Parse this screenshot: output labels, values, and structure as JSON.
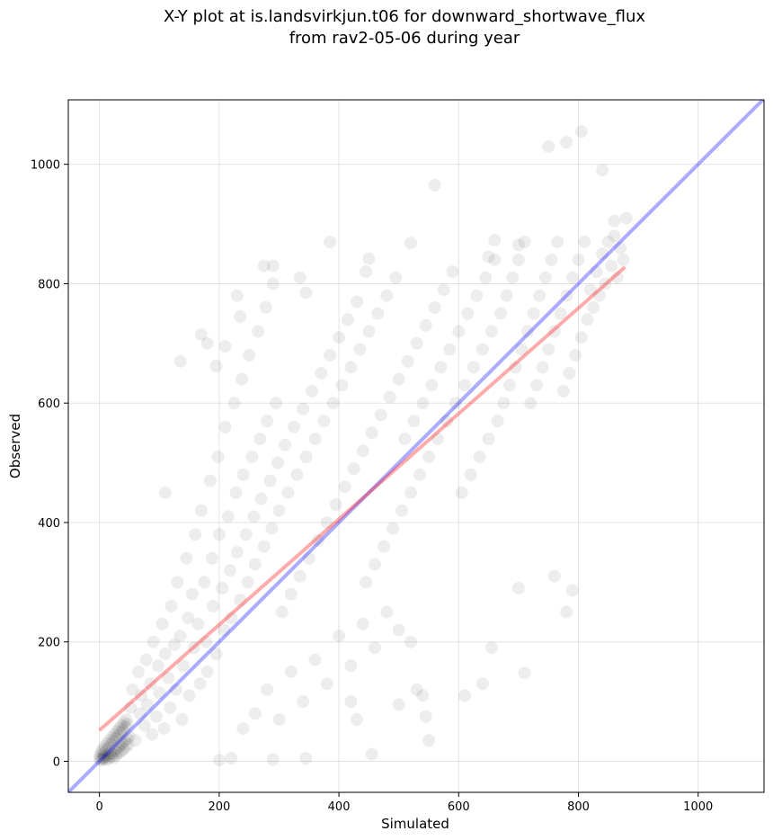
{
  "chart_data": {
    "type": "scatter",
    "title_lines": [
      "X-Y plot at is.landsvirkjun.t06 for downward_shortwave_flux",
      "from rav2-05-06 during year"
    ],
    "xlabel": "Simulated",
    "ylabel": "Observed",
    "xlim": [
      -52,
      1110
    ],
    "ylim": [
      -52,
      1108
    ],
    "xticks": [
      0,
      200,
      400,
      600,
      800,
      1000
    ],
    "yticks": [
      0,
      200,
      400,
      600,
      800,
      1000
    ],
    "grid": true,
    "point_color": "#000000",
    "point_alpha": 0.07,
    "one_to_one_line": {
      "color": "#0000ff",
      "from": [
        -52,
        -52
      ],
      "to": [
        1110,
        1110
      ]
    },
    "regression_line": {
      "color": "#ff0000",
      "from": [
        0,
        52
      ],
      "to": [
        878,
        828
      ]
    },
    "series": [
      {
        "points": [
          [
            0,
            5
          ],
          [
            2,
            3
          ],
          [
            1,
            10
          ],
          [
            4,
            2
          ],
          [
            3,
            15
          ],
          [
            6,
            6
          ],
          [
            5,
            20
          ],
          [
            8,
            4
          ],
          [
            7,
            12
          ],
          [
            10,
            8
          ],
          [
            9,
            25
          ],
          [
            12,
            3
          ],
          [
            11,
            18
          ],
          [
            14,
            10
          ],
          [
            13,
            30
          ],
          [
            16,
            5
          ],
          [
            15,
            22
          ],
          [
            18,
            14
          ],
          [
            17,
            35
          ],
          [
            20,
            8
          ],
          [
            19,
            28
          ],
          [
            22,
            12
          ],
          [
            21,
            40
          ],
          [
            24,
            6
          ],
          [
            23,
            33
          ],
          [
            26,
            18
          ],
          [
            25,
            45
          ],
          [
            28,
            10
          ],
          [
            27,
            38
          ],
          [
            30,
            22
          ],
          [
            29,
            50
          ],
          [
            32,
            14
          ],
          [
            31,
            42
          ],
          [
            34,
            26
          ],
          [
            33,
            55
          ],
          [
            36,
            16
          ],
          [
            35,
            48
          ],
          [
            38,
            30
          ],
          [
            37,
            60
          ],
          [
            40,
            20
          ],
          [
            39,
            52
          ],
          [
            42,
            34
          ],
          [
            41,
            65
          ],
          [
            44,
            24
          ],
          [
            43,
            58
          ],
          [
            46,
            38
          ],
          [
            45,
            70
          ],
          [
            48,
            28
          ],
          [
            47,
            62
          ],
          [
            50,
            42
          ],
          [
            52,
            90
          ],
          [
            55,
            120
          ],
          [
            60,
            35
          ],
          [
            65,
            150
          ],
          [
            68,
            80
          ],
          [
            70,
            110
          ],
          [
            75,
            60
          ],
          [
            78,
            170
          ],
          [
            80,
            95
          ],
          [
            85,
            130
          ],
          [
            88,
            45
          ],
          [
            90,
            200
          ],
          [
            95,
            75
          ],
          [
            98,
            160
          ],
          [
            100,
            115
          ],
          [
            105,
            230
          ],
          [
            108,
            55
          ],
          [
            110,
            180
          ],
          [
            115,
            140
          ],
          [
            118,
            90
          ],
          [
            120,
            260
          ],
          [
            125,
            195
          ],
          [
            128,
            120
          ],
          [
            130,
            300
          ],
          [
            135,
            210
          ],
          [
            138,
            70
          ],
          [
            140,
            160
          ],
          [
            145,
            340
          ],
          [
            148,
            240
          ],
          [
            150,
            110
          ],
          [
            155,
            280
          ],
          [
            158,
            190
          ],
          [
            160,
            380
          ],
          [
            165,
            230
          ],
          [
            168,
            130
          ],
          [
            170,
            420
          ],
          [
            175,
            300
          ],
          [
            178,
            200
          ],
          [
            180,
            150
          ],
          [
            185,
            470
          ],
          [
            188,
            340
          ],
          [
            190,
            260
          ],
          [
            195,
            180
          ],
          [
            198,
            510
          ],
          [
            200,
            380
          ],
          [
            205,
            290
          ],
          [
            208,
            220
          ],
          [
            210,
            560
          ],
          [
            215,
            410
          ],
          [
            218,
            320
          ],
          [
            220,
            240
          ],
          [
            225,
            600
          ],
          [
            228,
            450
          ],
          [
            230,
            350
          ],
          [
            235,
            270
          ],
          [
            238,
            640
          ],
          [
            240,
            480
          ],
          [
            245,
            380
          ],
          [
            248,
            300
          ],
          [
            250,
            680
          ],
          [
            255,
            510
          ],
          [
            258,
            410
          ],
          [
            260,
            330
          ],
          [
            265,
            720
          ],
          [
            268,
            540
          ],
          [
            270,
            440
          ],
          [
            275,
            360
          ],
          [
            278,
            760
          ],
          [
            280,
            570
          ],
          [
            285,
            470
          ],
          [
            288,
            390
          ],
          [
            290,
            800
          ],
          [
            295,
            600
          ],
          [
            298,
            500
          ],
          [
            300,
            420
          ],
          [
            305,
            250
          ],
          [
            310,
            530
          ],
          [
            315,
            450
          ],
          [
            320,
            280
          ],
          [
            325,
            560
          ],
          [
            330,
            480
          ],
          [
            335,
            310
          ],
          [
            340,
            590
          ],
          [
            345,
            510
          ],
          [
            350,
            340
          ],
          [
            355,
            620
          ],
          [
            360,
            540
          ],
          [
            365,
            370
          ],
          [
            370,
            650
          ],
          [
            375,
            570
          ],
          [
            380,
            400
          ],
          [
            385,
            680
          ],
          [
            390,
            600
          ],
          [
            395,
            430
          ],
          [
            400,
            710
          ],
          [
            405,
            630
          ],
          [
            410,
            460
          ],
          [
            415,
            740
          ],
          [
            420,
            660
          ],
          [
            425,
            490
          ],
          [
            430,
            770
          ],
          [
            435,
            690
          ],
          [
            440,
            520
          ],
          [
            445,
            300
          ],
          [
            450,
            720
          ],
          [
            455,
            550
          ],
          [
            460,
            330
          ],
          [
            465,
            750
          ],
          [
            470,
            580
          ],
          [
            475,
            360
          ],
          [
            480,
            780
          ],
          [
            485,
            610
          ],
          [
            490,
            390
          ],
          [
            495,
            810
          ],
          [
            500,
            640
          ],
          [
            505,
            420
          ],
          [
            510,
            540
          ],
          [
            515,
            670
          ],
          [
            520,
            450
          ],
          [
            525,
            570
          ],
          [
            530,
            700
          ],
          [
            535,
            480
          ],
          [
            540,
            600
          ],
          [
            545,
            730
          ],
          [
            550,
            510
          ],
          [
            555,
            630
          ],
          [
            560,
            760
          ],
          [
            565,
            540
          ],
          [
            570,
            660
          ],
          [
            575,
            790
          ],
          [
            580,
            570
          ],
          [
            585,
            690
          ],
          [
            590,
            820
          ],
          [
            595,
            600
          ],
          [
            600,
            720
          ],
          [
            605,
            450
          ],
          [
            610,
            630
          ],
          [
            615,
            750
          ],
          [
            620,
            480
          ],
          [
            625,
            660
          ],
          [
            630,
            780
          ],
          [
            635,
            510
          ],
          [
            640,
            690
          ],
          [
            645,
            810
          ],
          [
            650,
            540
          ],
          [
            655,
            720
          ],
          [
            660,
            840
          ],
          [
            665,
            570
          ],
          [
            670,
            750
          ],
          [
            675,
            600
          ],
          [
            680,
            780
          ],
          [
            685,
            630
          ],
          [
            690,
            810
          ],
          [
            695,
            660
          ],
          [
            700,
            840
          ],
          [
            705,
            690
          ],
          [
            710,
            870
          ],
          [
            715,
            720
          ],
          [
            720,
            600
          ],
          [
            725,
            750
          ],
          [
            730,
            630
          ],
          [
            735,
            780
          ],
          [
            740,
            660
          ],
          [
            745,
            810
          ],
          [
            750,
            690
          ],
          [
            755,
            840
          ],
          [
            760,
            720
          ],
          [
            765,
            870
          ],
          [
            770,
            750
          ],
          [
            775,
            620
          ],
          [
            780,
            780
          ],
          [
            785,
            650
          ],
          [
            790,
            810
          ],
          [
            795,
            680
          ],
          [
            800,
            840
          ],
          [
            805,
            710
          ],
          [
            810,
            870
          ],
          [
            815,
            740
          ],
          [
            820,
            790
          ],
          [
            825,
            760
          ],
          [
            830,
            820
          ],
          [
            835,
            780
          ],
          [
            840,
            850
          ],
          [
            845,
            800
          ],
          [
            850,
            870
          ],
          [
            855,
            830
          ],
          [
            860,
            880
          ],
          [
            865,
            810
          ],
          [
            870,
            860
          ],
          [
            875,
            840
          ],
          [
            110,
            450
          ],
          [
            135,
            670
          ],
          [
            170,
            715
          ],
          [
            180,
            700
          ],
          [
            195,
            662
          ],
          [
            210,
            695
          ],
          [
            230,
            780
          ],
          [
            235,
            745
          ],
          [
            275,
            830
          ],
          [
            290,
            830
          ],
          [
            335,
            810
          ],
          [
            345,
            785
          ],
          [
            385,
            870
          ],
          [
            445,
            820
          ],
          [
            450,
            842
          ],
          [
            520,
            868
          ],
          [
            560,
            965
          ],
          [
            650,
            845
          ],
          [
            660,
            873
          ],
          [
            700,
            865
          ],
          [
            750,
            1030
          ],
          [
            780,
            1037
          ],
          [
            805,
            1055
          ],
          [
            840,
            990
          ],
          [
            860,
            905
          ],
          [
            880,
            910
          ],
          [
            530,
            120
          ],
          [
            540,
            110
          ],
          [
            545,
            75
          ],
          [
            550,
            35
          ],
          [
            455,
            12
          ],
          [
            500,
            95
          ],
          [
            520,
            200
          ],
          [
            610,
            110
          ],
          [
            640,
            130
          ],
          [
            655,
            190
          ],
          [
            700,
            290
          ],
          [
            710,
            148
          ],
          [
            760,
            310
          ],
          [
            780,
            250
          ],
          [
            790,
            286
          ],
          [
            345,
            5
          ],
          [
            290,
            3
          ],
          [
            200,
            2
          ],
          [
            220,
            5
          ],
          [
            240,
            55
          ],
          [
            260,
            80
          ],
          [
            280,
            120
          ],
          [
            300,
            70
          ],
          [
            320,
            150
          ],
          [
            340,
            100
          ],
          [
            360,
            170
          ],
          [
            380,
            130
          ],
          [
            400,
            210
          ],
          [
            420,
            160
          ],
          [
            440,
            230
          ],
          [
            460,
            190
          ],
          [
            480,
            250
          ],
          [
            500,
            220
          ],
          [
            420,
            100
          ],
          [
            430,
            70
          ]
        ]
      }
    ]
  }
}
